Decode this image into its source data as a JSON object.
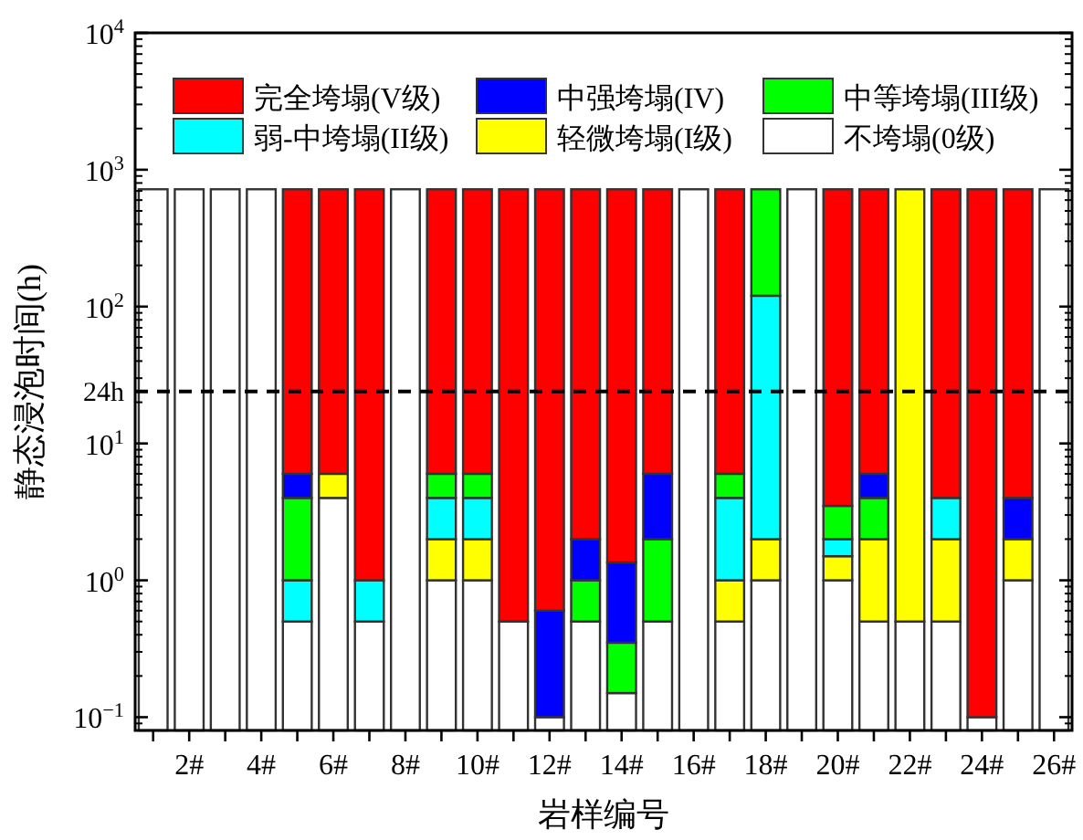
{
  "chart_data": {
    "type": "bar",
    "stacked": true,
    "log": "y",
    "xlabel": "岩样编号",
    "ylabel": "静态浸泡时间(h)",
    "categories": [
      null,
      "2#",
      null,
      "4#",
      null,
      "6#",
      null,
      "8#",
      null,
      "10#",
      null,
      "12#",
      null,
      "14#",
      null,
      "16#",
      null,
      "18#",
      null,
      "20#",
      null,
      "22#",
      null,
      "24#",
      null,
      "26#"
    ],
    "ylim": [
      0.08,
      10000
    ],
    "yticks": [
      {
        "value": 0.1,
        "label": "10$^{−1}$"
      },
      {
        "value": 1,
        "label": "10$^{0}$"
      },
      {
        "value": 10,
        "label": "10$^{1}$"
      },
      {
        "value": 100,
        "label": "10$^{2}$"
      },
      {
        "value": 1000,
        "label": "10$^{3}$"
      },
      {
        "value": 10000,
        "label": "10$^{4}$"
      }
    ],
    "series": [
      {
        "name": "不垮塌(0级)",
        "color": "#ffffff",
        "values": [
          720,
          720,
          720,
          720,
          0.5,
          4,
          0.5,
          720,
          1,
          1,
          0.5,
          0.1,
          0.5,
          0.15,
          0.5,
          720,
          0.5,
          1,
          720,
          1,
          0.5,
          0.5,
          0.5,
          0.1,
          1,
          720
        ]
      },
      {
        "name": "轻微垮塌(I级)",
        "color": "#ffff00",
        "values": [
          null,
          null,
          null,
          null,
          null,
          2,
          null,
          null,
          1,
          1,
          null,
          null,
          null,
          null,
          null,
          null,
          0.5,
          1,
          null,
          0.5,
          1.5,
          719.5,
          1.5,
          null,
          1,
          null
        ]
      },
      {
        "name": "弱-中垮塌(II级)",
        "color": "#00ffff",
        "values": [
          null,
          null,
          null,
          null,
          0.5,
          null,
          0.5,
          null,
          2,
          2,
          null,
          null,
          null,
          null,
          null,
          null,
          3,
          118,
          null,
          0.5,
          null,
          null,
          2,
          null,
          null,
          null
        ]
      },
      {
        "name": "中等垮塌(III级)",
        "color": "#00ff00",
        "values": [
          null,
          null,
          null,
          null,
          3,
          null,
          null,
          null,
          2,
          2,
          null,
          null,
          0.5,
          0.2,
          1.5,
          null,
          2,
          600,
          null,
          1.5,
          2,
          null,
          null,
          null,
          null,
          null
        ]
      },
      {
        "name": "中强垮塌(IV)",
        "color": "#0000ff",
        "values": [
          null,
          null,
          null,
          null,
          2,
          null,
          null,
          null,
          null,
          null,
          null,
          0.5,
          1,
          1,
          4,
          null,
          null,
          null,
          null,
          null,
          2,
          null,
          null,
          null,
          2,
          null
        ]
      },
      {
        "name": "完全垮塌(V级)",
        "color": "#ff0000",
        "values": [
          null,
          null,
          null,
          null,
          714,
          714,
          719,
          null,
          714,
          714,
          719.5,
          719.4,
          718,
          718.65,
          714,
          null,
          714,
          null,
          null,
          716.5,
          714,
          null,
          716,
          719.9,
          716,
          null
        ]
      }
    ],
    "ref_lines": [
      {
        "axis": "y",
        "value": 24,
        "label": "24h",
        "line_style": "dashed",
        "color": "#000000"
      }
    ],
    "legend": "top"
  }
}
